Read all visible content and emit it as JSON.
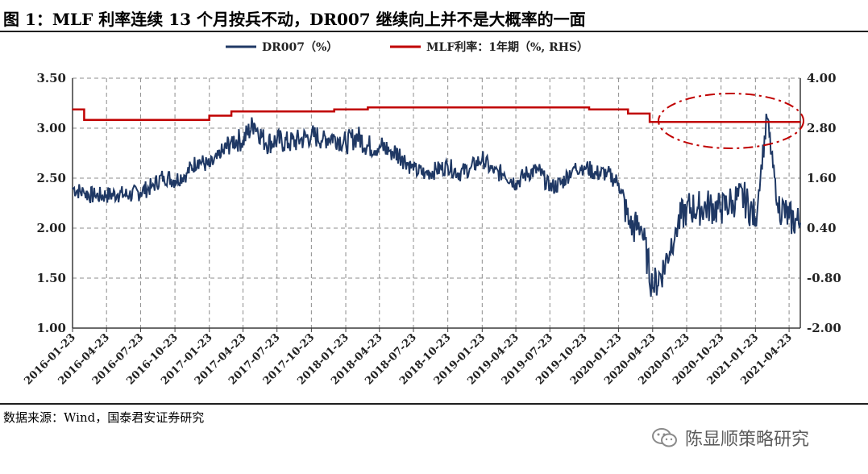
{
  "header": {
    "title": "图 1：MLF 利率连续 13 个月按兵不动，DR007 继续向上并不是大概率的一面"
  },
  "footer": {
    "source": "数据来源：Wind，国泰君安证券研究",
    "watermark": "陈显顺策略研究"
  },
  "colors": {
    "dr007": "#1f3864",
    "mlf": "#c00000",
    "grid": "#8c8c8c",
    "axis": "#3a3a3a"
  },
  "chart_data": {
    "type": "line",
    "title": "",
    "legend": {
      "placement": "top",
      "entries": [
        "DR007（%）",
        "MLF利率：1年期（%, RHS）"
      ]
    },
    "grid": true,
    "x_tick_labels": [
      "2016-01-23",
      "2016-04-23",
      "2016-07-23",
      "2016-10-23",
      "2017-01-23",
      "2017-04-23",
      "2017-07-23",
      "2017-10-23",
      "2018-01-23",
      "2018-04-23",
      "2018-07-23",
      "2018-10-23",
      "2019-01-23",
      "2019-04-23",
      "2019-07-23",
      "2019-10-23",
      "2020-01-23",
      "2020-04-23",
      "2020-07-23",
      "2020-10-23",
      "2021-01-23",
      "2021-04-23"
    ],
    "y_left": {
      "ticks": [
        "1.00",
        "1.50",
        "2.00",
        "2.50",
        "3.00",
        "3.50"
      ],
      "ylim": [
        1.0,
        3.5
      ]
    },
    "y_right": {
      "ticks": [
        "-2.00",
        "-0.80",
        "0.40",
        "1.60",
        "2.80",
        "4.00"
      ],
      "ylim": [
        -2.0,
        4.0
      ]
    },
    "series": [
      {
        "name": "DR007（%）",
        "axis": "left",
        "color": "#1f3864",
        "x": [
          "2016-01-23",
          "2016-02-23",
          "2016-03-23",
          "2016-04-23",
          "2016-05-23",
          "2016-06-23",
          "2016-07-23",
          "2016-08-23",
          "2016-09-23",
          "2016-10-23",
          "2016-11-23",
          "2016-12-23",
          "2017-01-23",
          "2017-02-23",
          "2017-03-23",
          "2017-04-23",
          "2017-05-23",
          "2017-06-23",
          "2017-07-23",
          "2017-08-23",
          "2017-09-23",
          "2017-10-23",
          "2017-11-23",
          "2017-12-23",
          "2018-01-23",
          "2018-02-23",
          "2018-03-23",
          "2018-04-23",
          "2018-05-23",
          "2018-06-23",
          "2018-07-23",
          "2018-08-23",
          "2018-09-23",
          "2018-10-23",
          "2018-11-23",
          "2018-12-23",
          "2019-01-23",
          "2019-02-23",
          "2019-03-23",
          "2019-04-23",
          "2019-05-23",
          "2019-06-23",
          "2019-07-23",
          "2019-08-23",
          "2019-09-23",
          "2019-10-23",
          "2019-11-23",
          "2019-12-23",
          "2020-01-23",
          "2020-02-23",
          "2020-03-23",
          "2020-04-23",
          "2020-05-23",
          "2020-06-23",
          "2020-07-23",
          "2020-08-23",
          "2020-09-23",
          "2020-10-23",
          "2020-11-23",
          "2020-12-23",
          "2021-01-23",
          "2021-02-23",
          "2021-03-23",
          "2021-04-23",
          "2021-05-23"
        ],
        "values": [
          2.4,
          2.35,
          2.32,
          2.33,
          2.34,
          2.33,
          2.36,
          2.42,
          2.52,
          2.48,
          2.55,
          2.68,
          2.62,
          2.72,
          2.88,
          2.88,
          3.05,
          2.85,
          2.88,
          2.85,
          2.88,
          2.93,
          2.9,
          2.92,
          2.85,
          2.92,
          2.82,
          2.82,
          2.78,
          2.72,
          2.58,
          2.55,
          2.58,
          2.62,
          2.55,
          2.6,
          2.7,
          2.55,
          2.55,
          2.45,
          2.55,
          2.58,
          2.4,
          2.45,
          2.6,
          2.62,
          2.55,
          2.55,
          2.45,
          2.0,
          2.02,
          1.4,
          1.6,
          2.0,
          2.2,
          2.2,
          2.22,
          2.18,
          2.28,
          2.3,
          2.1,
          3.1,
          2.25,
          2.1,
          2.05
        ]
      },
      {
        "name": "MLF利率：1年期（%, RHS）",
        "axis": "right",
        "color": "#c00000",
        "x": [
          "2016-01-23",
          "2016-02-23",
          "2017-01-23",
          "2017-03-23",
          "2017-12-23",
          "2018-03-23",
          "2019-11-05",
          "2020-02-17",
          "2020-04-15",
          "2021-04-23",
          "2021-05-23"
        ],
        "values": [
          3.25,
          3.0,
          3.1,
          3.2,
          3.25,
          3.3,
          3.25,
          3.15,
          2.95,
          2.95,
          2.95
        ]
      }
    ],
    "annotations": [
      {
        "kind": "dash-dot ellipse",
        "color": "#c00000",
        "around": "2020-07-23 to 2021-04-23, top of chart"
      }
    ]
  }
}
